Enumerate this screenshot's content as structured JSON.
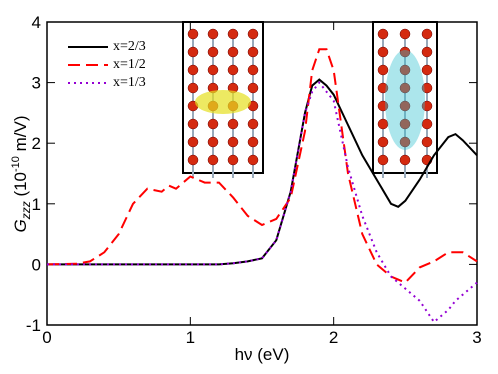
{
  "chart_data": {
    "type": "line",
    "xlabel": "hν (eV)",
    "ylabel": [
      "G",
      "zzz",
      " (10",
      "-10",
      " m/V)"
    ],
    "xlim": [
      0,
      3
    ],
    "xticks": [
      0,
      1,
      2,
      3
    ],
    "ylim": [
      -1,
      4
    ],
    "yticks": [
      -1,
      0,
      1,
      2,
      3,
      4
    ],
    "legend": "upper left",
    "x": [
      0,
      0.2,
      0.3,
      0.4,
      0.5,
      0.6,
      0.7,
      0.8,
      0.85,
      0.9,
      1.0,
      1.1,
      1.2,
      1.3,
      1.4,
      1.5,
      1.6,
      1.7,
      1.8,
      1.85,
      1.9,
      1.95,
      2.0,
      2.1,
      2.2,
      2.3,
      2.4,
      2.45,
      2.5,
      2.6,
      2.7,
      2.8,
      2.85,
      2.9,
      3.0
    ],
    "series": [
      {
        "name": "x=2/3",
        "color": "#000000",
        "dash": "solid",
        "values": [
          0,
          0,
          0,
          0,
          0,
          0,
          0,
          0,
          0,
          0,
          0,
          0,
          0,
          0.02,
          0.05,
          0.1,
          0.4,
          1.2,
          2.5,
          2.95,
          3.05,
          2.95,
          2.8,
          2.3,
          1.8,
          1.4,
          1.0,
          0.95,
          1.05,
          1.4,
          1.8,
          2.1,
          2.15,
          2.05,
          1.8
        ]
      },
      {
        "name": "x=1/2",
        "color": "#ff0000",
        "dash": "dashed",
        "values": [
          0,
          0.01,
          0.05,
          0.2,
          0.5,
          1.0,
          1.25,
          1.2,
          1.3,
          1.25,
          1.45,
          1.35,
          1.35,
          1.1,
          0.8,
          0.65,
          0.75,
          1.1,
          2.2,
          3.2,
          3.55,
          3.55,
          3.2,
          1.5,
          0.5,
          0,
          -0.2,
          -0.25,
          -0.3,
          -0.05,
          0.05,
          0.2,
          0.2,
          0.2,
          0.05
        ]
      },
      {
        "name": "x=1/3",
        "color": "#9400d3",
        "dash": "dotted",
        "values": [
          0,
          0,
          0,
          0,
          0,
          0,
          0,
          0,
          0,
          0,
          0,
          0,
          0,
          0.02,
          0.05,
          0.1,
          0.4,
          1.2,
          2.5,
          2.85,
          3.0,
          2.85,
          2.7,
          1.6,
          0.8,
          0.2,
          -0.2,
          -0.3,
          -0.4,
          -0.6,
          -0.95,
          -0.75,
          -0.6,
          -0.5,
          -0.3
        ]
      }
    ]
  }
}
